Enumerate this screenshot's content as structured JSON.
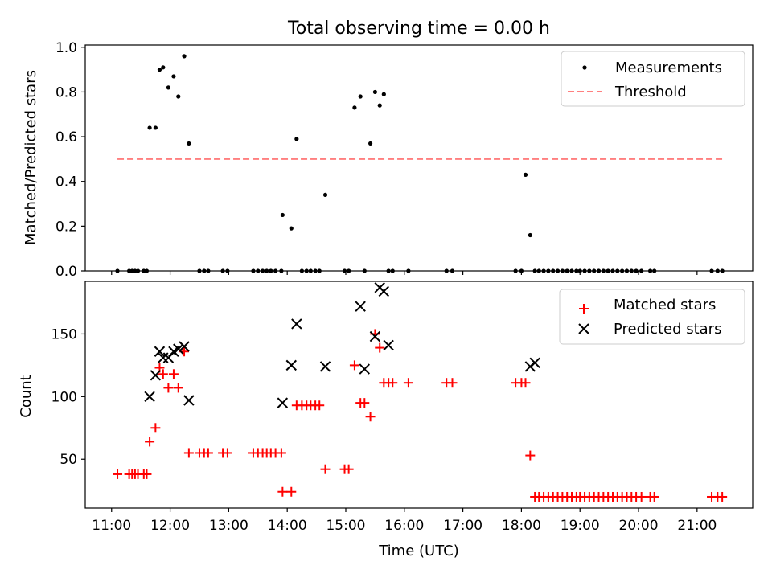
{
  "title": "Total observing time = 0.00 h",
  "colors": {
    "measurements": "#000000",
    "threshold": "#ff7f7f",
    "matched": "#ff0000",
    "predicted": "#000000"
  },
  "chart_data": [
    {
      "type": "scatter",
      "title": "Total observing time = 0.00 h",
      "ylabel": "Matched/Predicted stars",
      "xlabel": "",
      "xlim": [
        10.55,
        21.95
      ],
      "ylim": [
        0.0,
        1.01
      ],
      "yticks": [
        "0.0",
        "0.2",
        "0.4",
        "0.6",
        "0.8",
        "1.0"
      ],
      "ytick_values": [
        0.0,
        0.2,
        0.4,
        0.6,
        0.8,
        1.0
      ],
      "legend": {
        "position": "top-right",
        "entries": [
          "Measurements",
          "Threshold"
        ]
      },
      "threshold": {
        "name": "Threshold",
        "value": 0.5,
        "x_range": [
          11.1,
          21.45
        ]
      },
      "series": [
        {
          "name": "Measurements",
          "x": [
            11.1,
            11.3,
            11.35,
            11.4,
            11.45,
            11.55,
            11.6,
            11.65,
            11.75,
            11.82,
            11.88,
            11.97,
            12.06,
            12.14,
            12.24,
            12.32,
            12.5,
            12.58,
            12.65,
            12.9,
            12.98,
            13.42,
            13.5,
            13.58,
            13.65,
            13.72,
            13.8,
            13.9,
            13.92,
            14.07,
            14.16,
            14.25,
            14.33,
            14.4,
            14.48,
            14.55,
            14.65,
            14.98,
            15.05,
            15.15,
            15.25,
            15.32,
            15.42,
            15.5,
            15.58,
            15.65,
            15.73,
            15.8,
            16.07,
            16.72,
            16.82,
            17.9,
            18.0,
            18.07,
            18.15,
            18.23,
            18.3,
            18.38,
            18.46,
            18.54,
            18.62,
            18.7,
            18.78,
            18.86,
            18.94,
            19.0,
            19.08,
            19.16,
            19.24,
            19.32,
            19.4,
            19.48,
            19.56,
            19.64,
            19.72,
            19.8,
            19.88,
            19.96,
            20.05,
            20.2,
            20.27,
            21.25,
            21.35,
            21.43
          ],
          "y": [
            0.0,
            0.0,
            0.0,
            0.0,
            0.0,
            0.0,
            0.0,
            0.64,
            0.64,
            0.9,
            0.91,
            0.82,
            0.87,
            0.78,
            0.96,
            0.57,
            0.0,
            0.0,
            0.0,
            0.0,
            0.0,
            0.0,
            0.0,
            0.0,
            0.0,
            0.0,
            0.0,
            0.0,
            0.25,
            0.19,
            0.59,
            0.0,
            0.0,
            0.0,
            0.0,
            0.0,
            0.34,
            0.0,
            0.0,
            0.73,
            0.78,
            0.0,
            0.57,
            0.8,
            0.74,
            0.79,
            0.0,
            0.0,
            0.0,
            0.0,
            0.0,
            0.0,
            0.0,
            0.43,
            0.16,
            0.0,
            0.0,
            0.0,
            0.0,
            0.0,
            0.0,
            0.0,
            0.0,
            0.0,
            0.0,
            0.0,
            0.0,
            0.0,
            0.0,
            0.0,
            0.0,
            0.0,
            0.0,
            0.0,
            0.0,
            0.0,
            0.0,
            0.0,
            0.0,
            0.0,
            0.0,
            0.0,
            0.0,
            0.0
          ]
        }
      ]
    },
    {
      "type": "scatter",
      "ylabel": "Count",
      "xlabel": "Time (UTC)",
      "xlim": [
        10.55,
        21.95
      ],
      "ylim": [
        11,
        192
      ],
      "yticks": [
        "50",
        "100",
        "150"
      ],
      "ytick_values": [
        50,
        100,
        150
      ],
      "xticks": [
        "11:00",
        "12:00",
        "13:00",
        "14:00",
        "15:00",
        "16:00",
        "17:00",
        "18:00",
        "19:00",
        "20:00",
        "21:00"
      ],
      "xtick_values": [
        11,
        12,
        13,
        14,
        15,
        16,
        17,
        18,
        19,
        20,
        21
      ],
      "legend": {
        "position": "top-right",
        "entries": [
          "Matched stars",
          "Predicted stars"
        ]
      },
      "series": [
        {
          "name": "Matched stars",
          "x": [
            11.1,
            11.3,
            11.35,
            11.4,
            11.45,
            11.55,
            11.6,
            11.65,
            11.75,
            11.82,
            11.88,
            11.97,
            12.06,
            12.14,
            12.24,
            12.32,
            12.5,
            12.58,
            12.65,
            12.9,
            12.98,
            13.42,
            13.5,
            13.58,
            13.65,
            13.72,
            13.8,
            13.9,
            13.92,
            14.07,
            14.16,
            14.25,
            14.33,
            14.4,
            14.48,
            14.55,
            14.65,
            14.98,
            15.05,
            15.15,
            15.25,
            15.32,
            15.42,
            15.5,
            15.58,
            15.65,
            15.73,
            15.8,
            16.07,
            16.72,
            16.82,
            17.9,
            18.0,
            18.07,
            18.15,
            18.23,
            18.3,
            18.38,
            18.46,
            18.54,
            18.62,
            18.7,
            18.78,
            18.86,
            18.94,
            19.0,
            19.08,
            19.16,
            19.24,
            19.32,
            19.4,
            19.48,
            19.56,
            19.64,
            19.72,
            19.8,
            19.88,
            19.96,
            20.05,
            20.2,
            20.27,
            21.25,
            21.35,
            21.43
          ],
          "y": [
            38,
            38,
            38,
            38,
            38,
            38,
            38,
            64,
            75,
            123,
            118,
            107,
            118,
            107,
            136,
            55,
            55,
            55,
            55,
            55,
            55,
            55,
            55,
            55,
            55,
            55,
            55,
            55,
            24,
            24,
            93,
            93,
            93,
            93,
            93,
            93,
            42,
            42,
            42,
            125,
            95,
            95,
            84,
            150,
            139,
            111,
            111,
            111,
            111,
            111,
            111,
            111,
            111,
            111,
            53,
            20,
            20,
            20,
            20,
            20,
            20,
            20,
            20,
            20,
            20,
            20,
            20,
            20,
            20,
            20,
            20,
            20,
            20,
            20,
            20,
            20,
            20,
            20,
            20,
            20,
            20,
            20,
            20,
            20
          ]
        },
        {
          "name": "Predicted stars",
          "x": [
            11.65,
            11.75,
            11.82,
            11.88,
            11.97,
            12.06,
            12.14,
            12.24,
            12.32,
            13.92,
            14.07,
            14.16,
            14.65,
            15.25,
            15.32,
            15.5,
            15.58,
            15.65,
            15.73,
            18.15,
            18.23
          ],
          "y": [
            100,
            117,
            136,
            131,
            131,
            136,
            138,
            140,
            97,
            95,
            125,
            158,
            124,
            172,
            122,
            148,
            187,
            184,
            141,
            124,
            127
          ]
        }
      ]
    }
  ]
}
